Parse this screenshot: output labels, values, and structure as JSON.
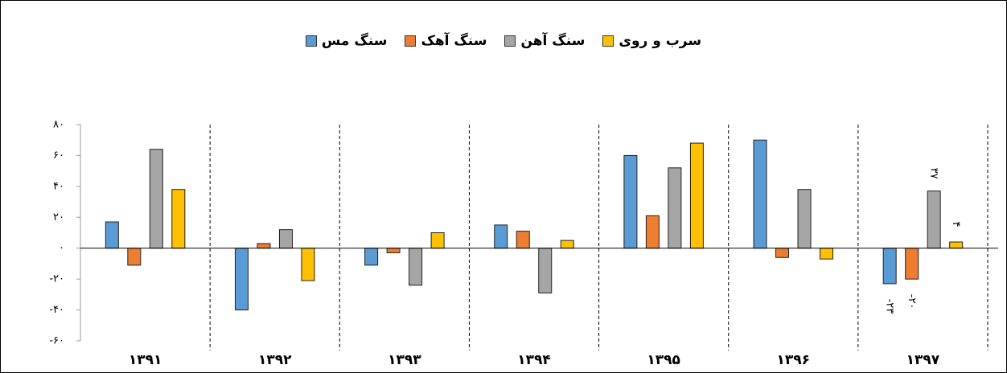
{
  "chart_data": {
    "type": "bar",
    "categories": [
      "۱۳۹۱",
      "۱۳۹۲",
      "۱۳۹۳",
      "۱۳۹۴",
      "۱۳۹۵",
      "۱۳۹۶",
      "۱۳۹۷"
    ],
    "series": [
      {
        "name": "سنگ مس",
        "color": "#5b9bd5",
        "values": [
          17,
          -40,
          -11,
          15,
          60,
          70,
          -23
        ],
        "value_labels": [
          null,
          null,
          null,
          null,
          null,
          null,
          "-۲۳"
        ]
      },
      {
        "name": "سنگ آهک",
        "color": "#ed7d31",
        "values": [
          -11,
          3,
          -3,
          11,
          21,
          -6,
          -20
        ],
        "value_labels": [
          null,
          null,
          null,
          null,
          null,
          null,
          "-۲۰"
        ]
      },
      {
        "name": "سنگ آهن",
        "color": "#a5a5a5",
        "values": [
          64,
          12,
          -24,
          -29,
          52,
          38,
          37
        ],
        "value_labels": [
          null,
          null,
          null,
          null,
          null,
          null,
          "۳۷"
        ]
      },
      {
        "name": "سرب و روی",
        "color": "#ffc000",
        "values": [
          38,
          -21,
          10,
          5,
          68,
          -7,
          4
        ],
        "value_labels": [
          null,
          null,
          null,
          null,
          null,
          null,
          "۴"
        ]
      }
    ],
    "ylim": [
      -60,
      80
    ],
    "yticks": [
      {
        "value": -60,
        "label": "-۶۰"
      },
      {
        "value": -40,
        "label": "-۴۰"
      },
      {
        "value": -20,
        "label": "-۲۰"
      },
      {
        "value": 0,
        "label": "۰"
      },
      {
        "value": 20,
        "label": "۲۰"
      },
      {
        "value": 40,
        "label": "۴۰"
      },
      {
        "value": 60,
        "label": "۶۰"
      },
      {
        "value": 80,
        "label": "۸۰"
      }
    ],
    "legend": "top"
  }
}
